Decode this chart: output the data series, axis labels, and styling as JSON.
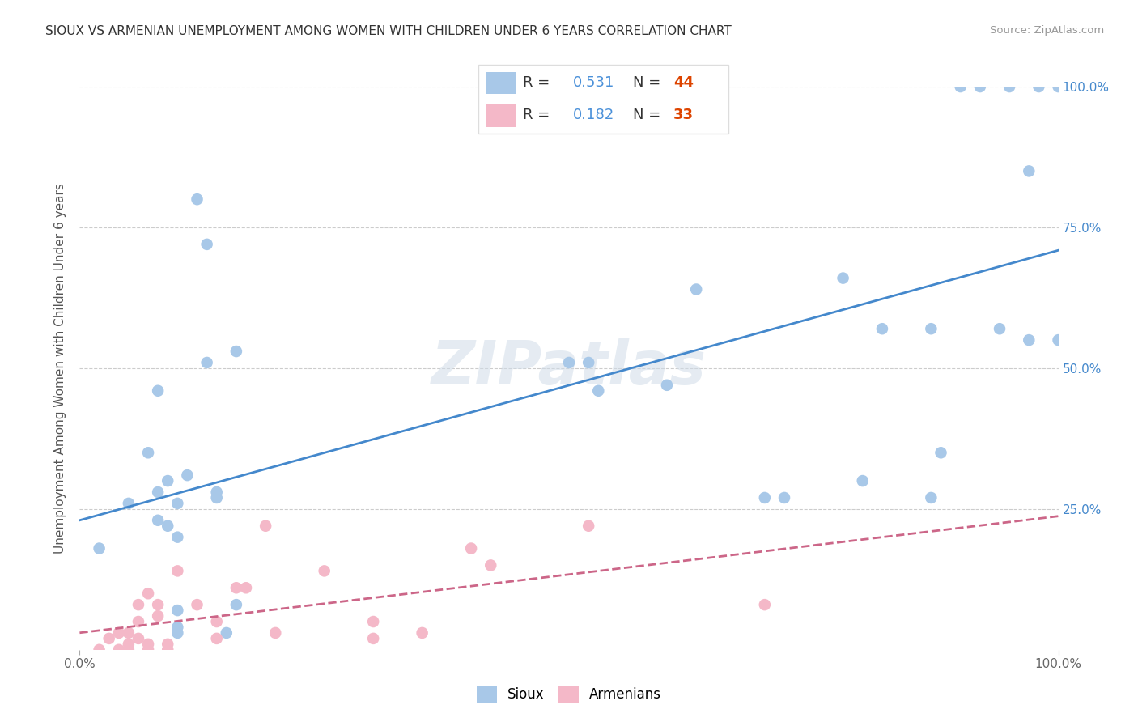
{
  "title": "SIOUX VS ARMENIAN UNEMPLOYMENT AMONG WOMEN WITH CHILDREN UNDER 6 YEARS CORRELATION CHART",
  "source": "Source: ZipAtlas.com",
  "ylabel": "Unemployment Among Women with Children Under 6 years",
  "watermark": "ZIPatlas",
  "sioux_color": "#a8c8e8",
  "armenian_color": "#f4b8c8",
  "sioux_line_color": "#4488cc",
  "armenian_line_color": "#cc6688",
  "legend_r_color": "#4a90d9",
  "legend_n_sioux_color": "#dd4400",
  "legend_n_armenian_color": "#dd4400",
  "sioux_R": 0.531,
  "sioux_N": 44,
  "armenian_R": 0.182,
  "armenian_N": 33,
  "sioux_x": [
    0.02,
    0.05,
    0.07,
    0.08,
    0.08,
    0.08,
    0.09,
    0.09,
    0.1,
    0.1,
    0.1,
    0.1,
    0.1,
    0.11,
    0.12,
    0.13,
    0.13,
    0.14,
    0.14,
    0.15,
    0.16,
    0.16,
    0.5,
    0.52,
    0.53,
    0.6,
    0.63,
    0.7,
    0.72,
    0.78,
    0.8,
    0.82,
    0.87,
    0.87,
    0.88,
    0.9,
    0.92,
    0.94,
    0.95,
    0.97,
    0.97,
    0.98,
    1.0,
    1.0
  ],
  "sioux_y": [
    0.18,
    0.26,
    0.35,
    0.23,
    0.28,
    0.46,
    0.22,
    0.3,
    0.03,
    0.04,
    0.07,
    0.2,
    0.26,
    0.31,
    0.8,
    0.72,
    0.51,
    0.27,
    0.28,
    0.03,
    0.08,
    0.53,
    0.51,
    0.51,
    0.46,
    0.47,
    0.64,
    0.27,
    0.27,
    0.66,
    0.3,
    0.57,
    0.57,
    0.27,
    0.35,
    1.0,
    1.0,
    0.57,
    1.0,
    0.55,
    0.85,
    1.0,
    1.0,
    0.55
  ],
  "armenian_x": [
    0.02,
    0.03,
    0.04,
    0.04,
    0.05,
    0.05,
    0.05,
    0.06,
    0.06,
    0.06,
    0.07,
    0.07,
    0.07,
    0.08,
    0.08,
    0.09,
    0.09,
    0.1,
    0.12,
    0.14,
    0.14,
    0.16,
    0.17,
    0.19,
    0.2,
    0.25,
    0.3,
    0.3,
    0.35,
    0.4,
    0.42,
    0.52,
    0.7
  ],
  "armenian_y": [
    0.0,
    0.02,
    0.0,
    0.03,
    0.0,
    0.01,
    0.03,
    0.02,
    0.05,
    0.08,
    0.0,
    0.01,
    0.1,
    0.06,
    0.08,
    0.0,
    0.01,
    0.14,
    0.08,
    0.02,
    0.05,
    0.11,
    0.11,
    0.22,
    0.03,
    0.14,
    0.02,
    0.05,
    0.03,
    0.18,
    0.15,
    0.22,
    0.08
  ],
  "background_color": "#ffffff",
  "grid_color": "#cccccc",
  "right_tick_color": "#4488cc",
  "ytick_vals": [
    0.0,
    0.25,
    0.5,
    0.75,
    1.0
  ],
  "xtick_vals": [
    0.0,
    1.0
  ]
}
